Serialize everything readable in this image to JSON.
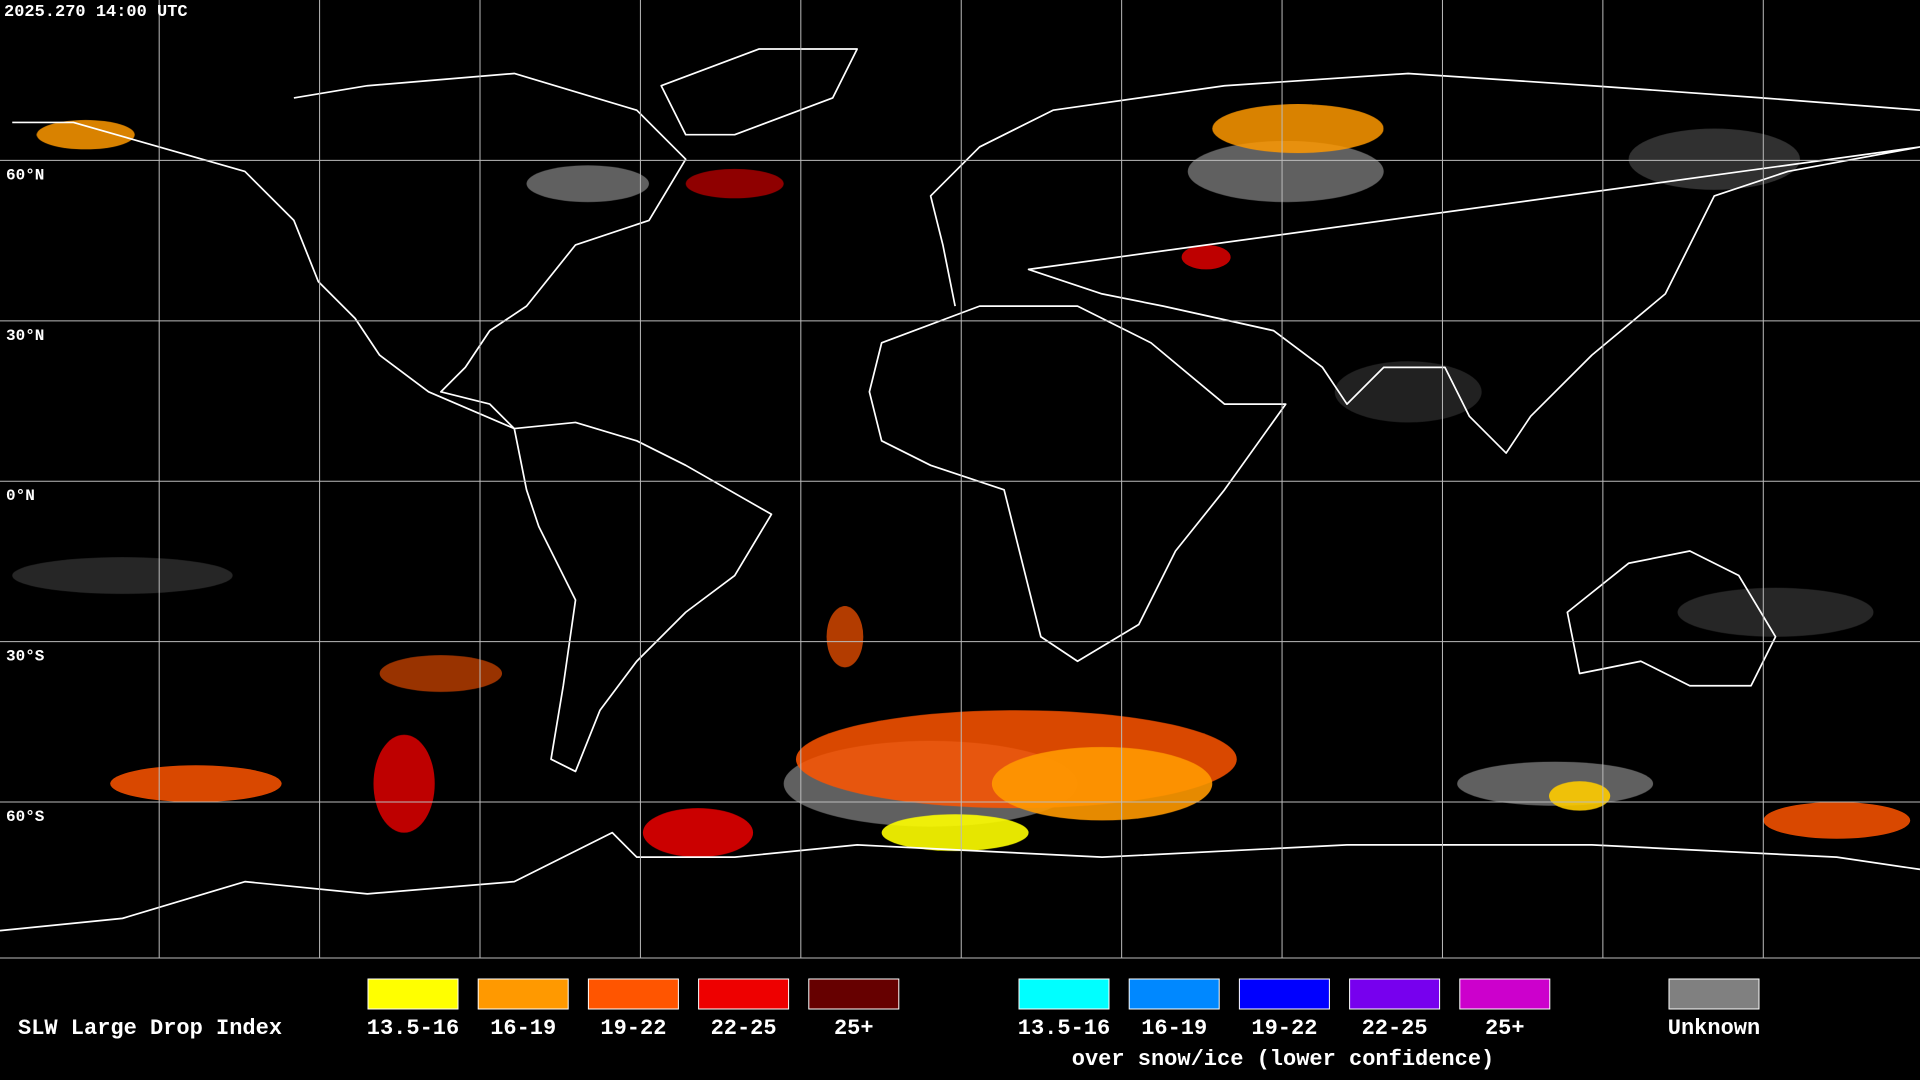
{
  "header": {
    "timestamp": "2025.270 14:00 UTC"
  },
  "grid": {
    "lat_labels": [
      "60°N",
      "30°N",
      "0°N",
      "30°S",
      "60°S"
    ]
  },
  "legend": {
    "title": "SLW Large Drop Index",
    "water": [
      {
        "label": "13.5-16",
        "color": "#ffff00"
      },
      {
        "label": "16-19",
        "color": "#ff9900"
      },
      {
        "label": "19-22",
        "color": "#ff5500"
      },
      {
        "label": "22-25",
        "color": "#ee0000"
      },
      {
        "label": "25+",
        "color": "#660000"
      }
    ],
    "snow_ice": [
      {
        "label": "13.5-16",
        "color": "#00ffff"
      },
      {
        "label": "16-19",
        "color": "#0088ff"
      },
      {
        "label": "19-22",
        "color": "#0000ff"
      },
      {
        "label": "22-25",
        "color": "#7700ee"
      },
      {
        "label": "25+",
        "color": "#cc00cc"
      }
    ],
    "snow_ice_note": "over snow/ice (lower confidence)",
    "unknown": {
      "label": "Unknown",
      "color": "#808080"
    }
  }
}
